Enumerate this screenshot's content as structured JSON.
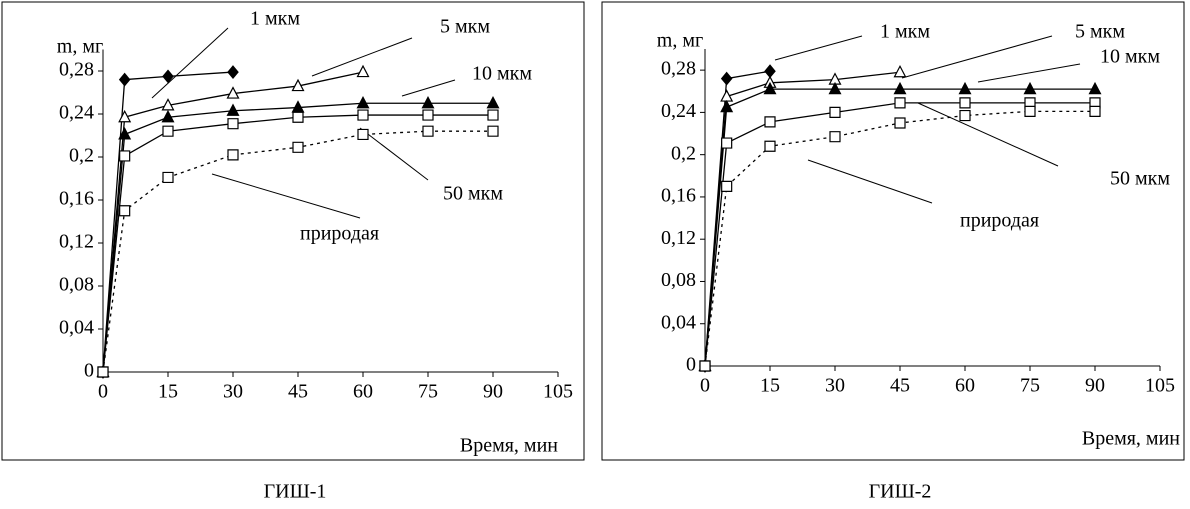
{
  "chart_data": [
    {
      "type": "line",
      "title": "ГИШ-1",
      "xlabel": "Время, мин",
      "ylabel": "m, мг",
      "xlim": [
        0,
        105
      ],
      "xticks": [
        0,
        15,
        30,
        45,
        60,
        75,
        90,
        105
      ],
      "ylim": [
        0,
        0.3
      ],
      "yticks": [
        0,
        {
          "value": 0.04,
          "label": "0,04"
        },
        {
          "value": 0.08,
          "label": "0,08"
        },
        {
          "value": 0.12,
          "label": "0,12"
        },
        {
          "value": 0.16,
          "label": "0,16"
        },
        {
          "value": 0.2,
          "label": "0,2"
        },
        {
          "value": 0.24,
          "label": "0,24"
        },
        {
          "value": 0.28,
          "label": "0,28"
        }
      ],
      "series": [
        {
          "name": "1 мкм",
          "color": "#000000",
          "marker": "diamond",
          "filled": true,
          "dashed": false,
          "x": [
            0,
            5,
            15,
            30
          ],
          "values": [
            0,
            0.272,
            0.275,
            0.279
          ]
        },
        {
          "name": "5 мкм",
          "color": "#000000",
          "marker": "triangle",
          "filled": false,
          "dashed": false,
          "x": [
            0,
            5,
            15,
            30,
            45,
            60
          ],
          "values": [
            0,
            0.237,
            0.248,
            0.259,
            0.266,
            0.279
          ]
        },
        {
          "name": "10 мкм",
          "color": "#000000",
          "marker": "triangle",
          "filled": true,
          "dashed": false,
          "x": [
            0,
            5,
            15,
            30,
            45,
            60,
            75,
            90
          ],
          "values": [
            0,
            0.221,
            0.237,
            0.243,
            0.246,
            0.25,
            0.25,
            0.25
          ]
        },
        {
          "name": "50 мкм",
          "color": "#000000",
          "marker": "square",
          "filled": false,
          "dashed": false,
          "x": [
            0,
            5,
            15,
            30,
            45,
            60,
            75,
            90
          ],
          "values": [
            0,
            0.201,
            0.224,
            0.231,
            0.237,
            0.239,
            0.239,
            0.239
          ]
        },
        {
          "name": "природая",
          "color": "#000000",
          "marker": "square",
          "filled": false,
          "dashed": true,
          "x": [
            0,
            5,
            15,
            30,
            45,
            60,
            75,
            90
          ],
          "values": [
            0,
            0.15,
            0.181,
            0.202,
            0.209,
            0.221,
            0.224,
            0.224
          ]
        }
      ]
    },
    {
      "type": "line",
      "title": "ГИШ-2",
      "xlabel": "Время, мин",
      "ylabel": "m, мг",
      "xlim": [
        0,
        105
      ],
      "xticks": [
        0,
        15,
        30,
        45,
        60,
        75,
        90,
        105
      ],
      "ylim": [
        0,
        0.3
      ],
      "yticks": [
        0,
        {
          "value": 0.04,
          "label": "0,04"
        },
        {
          "value": 0.08,
          "label": "0,08"
        },
        {
          "value": 0.12,
          "label": "0,12"
        },
        {
          "value": 0.16,
          "label": "0,16"
        },
        {
          "value": 0.2,
          "label": "0,2"
        },
        {
          "value": 0.24,
          "label": "0,24"
        },
        {
          "value": 0.28,
          "label": "0,28"
        }
      ],
      "series": [
        {
          "name": "1 мкм",
          "color": "#000000",
          "marker": "diamond",
          "filled": true,
          "dashed": false,
          "x": [
            0,
            5,
            15
          ],
          "values": [
            0,
            0.272,
            0.279
          ]
        },
        {
          "name": "5 мкм",
          "color": "#000000",
          "marker": "triangle",
          "filled": false,
          "dashed": false,
          "x": [
            0,
            5,
            15,
            30,
            45
          ],
          "values": [
            0,
            0.255,
            0.268,
            0.271,
            0.278
          ]
        },
        {
          "name": "10 мкм",
          "color": "#000000",
          "marker": "triangle",
          "filled": true,
          "dashed": false,
          "x": [
            0,
            5,
            15,
            30,
            45,
            60,
            75,
            90
          ],
          "values": [
            0,
            0.245,
            0.262,
            0.262,
            0.262,
            0.262,
            0.262,
            0.262
          ]
        },
        {
          "name": "50 мкм",
          "color": "#000000",
          "marker": "square",
          "filled": false,
          "dashed": false,
          "x": [
            0,
            5,
            15,
            30,
            45,
            60,
            75,
            90
          ],
          "values": [
            0,
            0.211,
            0.231,
            0.24,
            0.249,
            0.249,
            0.249,
            0.249
          ]
        },
        {
          "name": "природая",
          "color": "#000000",
          "marker": "square",
          "filled": false,
          "dashed": true,
          "x": [
            0,
            5,
            15,
            30,
            45,
            60,
            75,
            90
          ],
          "values": [
            0,
            0.17,
            0.208,
            0.217,
            0.23,
            0.237,
            0.241,
            0.241
          ]
        }
      ]
    }
  ]
}
